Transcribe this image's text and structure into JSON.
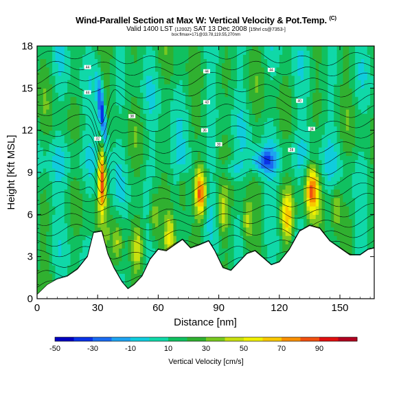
{
  "chart_data": {
    "type": "heatmap",
    "title": "Wind-Parallel Section at Max W: Vertical Velocity & Pot.Temp.",
    "title_mark": "(C)",
    "subtitle": "Valid 1400 LST",
    "subtitle_small": "(1200Z)",
    "subtitle_date": "SAT 13 Dec 2008",
    "subtitle_tail": "[15hrl cs@7353-]",
    "subtitle2": "box:flmax=171@33.78,119.55,270nm",
    "xlabel": "Distance [nm]",
    "ylabel": "Height [Kft MSL]",
    "xlim": [
      0,
      167
    ],
    "ylim": [
      0,
      18
    ],
    "xticks": [
      0,
      30,
      60,
      90,
      120,
      150
    ],
    "yticks": [
      0,
      3,
      6,
      9,
      12,
      15,
      18
    ],
    "terrain": [
      [
        0,
        0.3
      ],
      [
        5,
        1.0
      ],
      [
        10,
        1.4
      ],
      [
        15,
        1.6
      ],
      [
        20,
        2.1
      ],
      [
        25,
        3.0
      ],
      [
        28,
        4.7
      ],
      [
        32,
        4.8
      ],
      [
        35,
        3.2
      ],
      [
        38,
        2.2
      ],
      [
        42,
        1.2
      ],
      [
        45,
        0.7
      ],
      [
        48,
        1.0
      ],
      [
        52,
        1.6
      ],
      [
        56,
        2.8
      ],
      [
        60,
        3.5
      ],
      [
        64,
        3.4
      ],
      [
        68,
        3.8
      ],
      [
        72,
        4.2
      ],
      [
        76,
        3.6
      ],
      [
        80,
        3.8
      ],
      [
        85,
        4.1
      ],
      [
        88,
        3.4
      ],
      [
        92,
        2.2
      ],
      [
        96,
        2.0
      ],
      [
        100,
        2.6
      ],
      [
        104,
        3.2
      ],
      [
        108,
        3.4
      ],
      [
        112,
        2.9
      ],
      [
        116,
        2.4
      ],
      [
        120,
        2.6
      ],
      [
        125,
        3.5
      ],
      [
        130,
        4.8
      ],
      [
        135,
        5.2
      ],
      [
        140,
        5.0
      ],
      [
        145,
        4.1
      ],
      [
        150,
        3.6
      ],
      [
        155,
        3.1
      ],
      [
        160,
        3.1
      ],
      [
        164,
        3.5
      ],
      [
        167,
        3.6
      ]
    ],
    "vertical_velocity_maxima": [
      {
        "x": 32,
        "y": 8.5,
        "w": 95,
        "label": "updraft"
      },
      {
        "x": 81,
        "y": 7.5,
        "w": 95,
        "label": "updraft"
      },
      {
        "x": 136,
        "y": 7.8,
        "w": 80,
        "label": "updraft"
      },
      {
        "x": 124,
        "y": 5.8,
        "w": 70,
        "label": "updraft"
      },
      {
        "x": 33,
        "y": 13.5,
        "w": -40,
        "label": "downdraft"
      },
      {
        "x": 112,
        "y": 9.8,
        "w": -25,
        "label": "downdraft"
      }
    ],
    "contour_labels": [
      "44",
      "44",
      "44",
      "44",
      "43",
      "40",
      "38",
      "36",
      "34",
      "32",
      "30",
      "28"
    ],
    "colorbar": {
      "title": "Vertical Velocity [cm/s]",
      "tick_labels": [
        "-50",
        "-30",
        "-10",
        "10",
        "30",
        "50",
        "70",
        "90"
      ],
      "levels": [
        -50,
        -40,
        -30,
        -20,
        -10,
        0,
        10,
        20,
        30,
        40,
        50,
        60,
        70,
        80,
        90,
        100
      ],
      "colors": [
        "#0000c0",
        "#0a32e6",
        "#1a6bf0",
        "#1ea3f0",
        "#10ccdd",
        "#10d8a8",
        "#10c060",
        "#30b030",
        "#78c820",
        "#c8e010",
        "#f0f000",
        "#f8c800",
        "#f89000",
        "#f05010",
        "#e01010",
        "#b00020"
      ]
    }
  }
}
